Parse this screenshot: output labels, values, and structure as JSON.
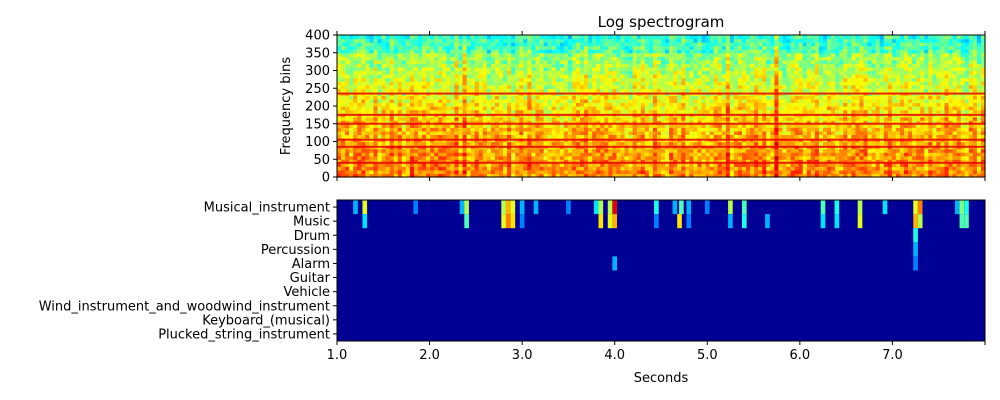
{
  "chart_data": [
    {
      "type": "heatmap",
      "title": "Log spectrogram",
      "xlabel": "",
      "ylabel": "Frequency bins",
      "colormap": "jet",
      "ylim": [
        0,
        400
      ],
      "xlim": [
        1.0,
        8.0
      ],
      "y_ticks": [
        0,
        50,
        100,
        150,
        200,
        250,
        300,
        350,
        400
      ],
      "x_tick_values": [
        1.0,
        2.0,
        3.0,
        4.0,
        5.0,
        6.0,
        7.0,
        8.0
      ],
      "x_tick_labels_shown": false,
      "strong_frequency_bands": [
        40,
        85,
        105,
        150,
        175,
        235
      ],
      "description_of_intensity": "mostly yellow/orange energy in low-mid bins, cyan/green near the top bins"
    },
    {
      "type": "heatmap",
      "xlabel": "Seconds",
      "ylabel": "",
      "colormap": "jet",
      "xlim": [
        1.0,
        8.0
      ],
      "x_tick_values": [
        1.0,
        2.0,
        3.0,
        4.0,
        5.0,
        6.0,
        7.0
      ],
      "x_tick_labels": [
        "1.0",
        "2.0",
        "3.0",
        "4.0",
        "5.0",
        "6.0",
        "7.0"
      ],
      "categories": [
        "Musical_instrument",
        "Music",
        "Drum",
        "Percussion",
        "Alarm",
        "Guitar",
        "Vehicle",
        "Wind_instrument_and_woodwind_instrument",
        "Keyboard_(musical)",
        "Plucked_string_instrument"
      ],
      "activations": [
        {
          "category": "Musical_instrument",
          "t": 1.2,
          "value": 0.3
        },
        {
          "category": "Musical_instrument",
          "t": 1.3,
          "value": 0.6
        },
        {
          "category": "Music",
          "t": 1.3,
          "value": 0.35
        },
        {
          "category": "Musical_instrument",
          "t": 1.85,
          "value": 0.25
        },
        {
          "category": "Musical_instrument",
          "t": 2.35,
          "value": 0.3
        },
        {
          "category": "Musical_instrument",
          "t": 2.4,
          "value": 0.55
        },
        {
          "category": "Music",
          "t": 2.4,
          "value": 0.45
        },
        {
          "category": "Musical_instrument",
          "t": 2.8,
          "value": 0.55
        },
        {
          "category": "Musical_instrument",
          "t": 2.85,
          "value": 0.7
        },
        {
          "category": "Musical_instrument",
          "t": 2.9,
          "value": 0.6
        },
        {
          "category": "Music",
          "t": 2.8,
          "value": 0.6
        },
        {
          "category": "Music",
          "t": 2.85,
          "value": 0.75
        },
        {
          "category": "Music",
          "t": 2.9,
          "value": 0.65
        },
        {
          "category": "Musical_instrument",
          "t": 3.0,
          "value": 0.3
        },
        {
          "category": "Music",
          "t": 3.0,
          "value": 0.25
        },
        {
          "category": "Musical_instrument",
          "t": 3.15,
          "value": 0.3
        },
        {
          "category": "Musical_instrument",
          "t": 3.5,
          "value": 0.25
        },
        {
          "category": "Musical_instrument",
          "t": 3.8,
          "value": 0.35
        },
        {
          "category": "Musical_instrument",
          "t": 3.85,
          "value": 0.55
        },
        {
          "category": "Music",
          "t": 3.85,
          "value": 0.65
        },
        {
          "category": "Musical_instrument",
          "t": 3.95,
          "value": 0.55
        },
        {
          "category": "Musical_instrument",
          "t": 4.0,
          "value": 0.9
        },
        {
          "category": "Music",
          "t": 3.95,
          "value": 0.6
        },
        {
          "category": "Music",
          "t": 4.0,
          "value": 0.7
        },
        {
          "category": "Alarm",
          "t": 4.0,
          "value": 0.3
        },
        {
          "category": "Musical_instrument",
          "t": 4.45,
          "value": 0.4
        },
        {
          "category": "Music",
          "t": 4.45,
          "value": 0.25
        },
        {
          "category": "Musical_instrument",
          "t": 4.65,
          "value": 0.3
        },
        {
          "category": "Musical_instrument",
          "t": 4.72,
          "value": 0.45
        },
        {
          "category": "Music",
          "t": 4.7,
          "value": 0.65
        },
        {
          "category": "Musical_instrument",
          "t": 4.8,
          "value": 0.3
        },
        {
          "category": "Music",
          "t": 4.8,
          "value": 0.25
        },
        {
          "category": "Musical_instrument",
          "t": 5.0,
          "value": 0.25
        },
        {
          "category": "Musical_instrument",
          "t": 5.25,
          "value": 0.55
        },
        {
          "category": "Music",
          "t": 5.25,
          "value": 0.3
        },
        {
          "category": "Musical_instrument",
          "t": 5.4,
          "value": 0.45
        },
        {
          "category": "Music",
          "t": 5.4,
          "value": 0.4
        },
        {
          "category": "Music",
          "t": 5.65,
          "value": 0.3
        },
        {
          "category": "Musical_instrument",
          "t": 6.25,
          "value": 0.45
        },
        {
          "category": "Music",
          "t": 6.25,
          "value": 0.35
        },
        {
          "category": "Musical_instrument",
          "t": 6.4,
          "value": 0.4
        },
        {
          "category": "Music",
          "t": 6.4,
          "value": 0.35
        },
        {
          "category": "Musical_instrument",
          "t": 6.65,
          "value": 0.55
        },
        {
          "category": "Music",
          "t": 6.65,
          "value": 0.6
        },
        {
          "category": "Musical_instrument",
          "t": 6.92,
          "value": 0.35
        },
        {
          "category": "Musical_instrument",
          "t": 7.25,
          "value": 0.6
        },
        {
          "category": "Musical_instrument",
          "t": 7.3,
          "value": 0.75
        },
        {
          "category": "Music",
          "t": 7.25,
          "value": 0.7
        },
        {
          "category": "Music",
          "t": 7.3,
          "value": 0.55
        },
        {
          "category": "Drum",
          "t": 7.25,
          "value": 0.4
        },
        {
          "category": "Percussion",
          "t": 7.25,
          "value": 0.3
        },
        {
          "category": "Alarm",
          "t": 7.25,
          "value": 0.25
        },
        {
          "category": "Musical_instrument",
          "t": 7.7,
          "value": 0.3
        },
        {
          "category": "Musical_instrument",
          "t": 7.75,
          "value": 0.5
        },
        {
          "category": "Music",
          "t": 7.75,
          "value": 0.45
        },
        {
          "category": "Musical_instrument",
          "t": 7.8,
          "value": 0.4
        },
        {
          "category": "Music",
          "t": 7.8,
          "value": 0.45
        }
      ]
    }
  ]
}
